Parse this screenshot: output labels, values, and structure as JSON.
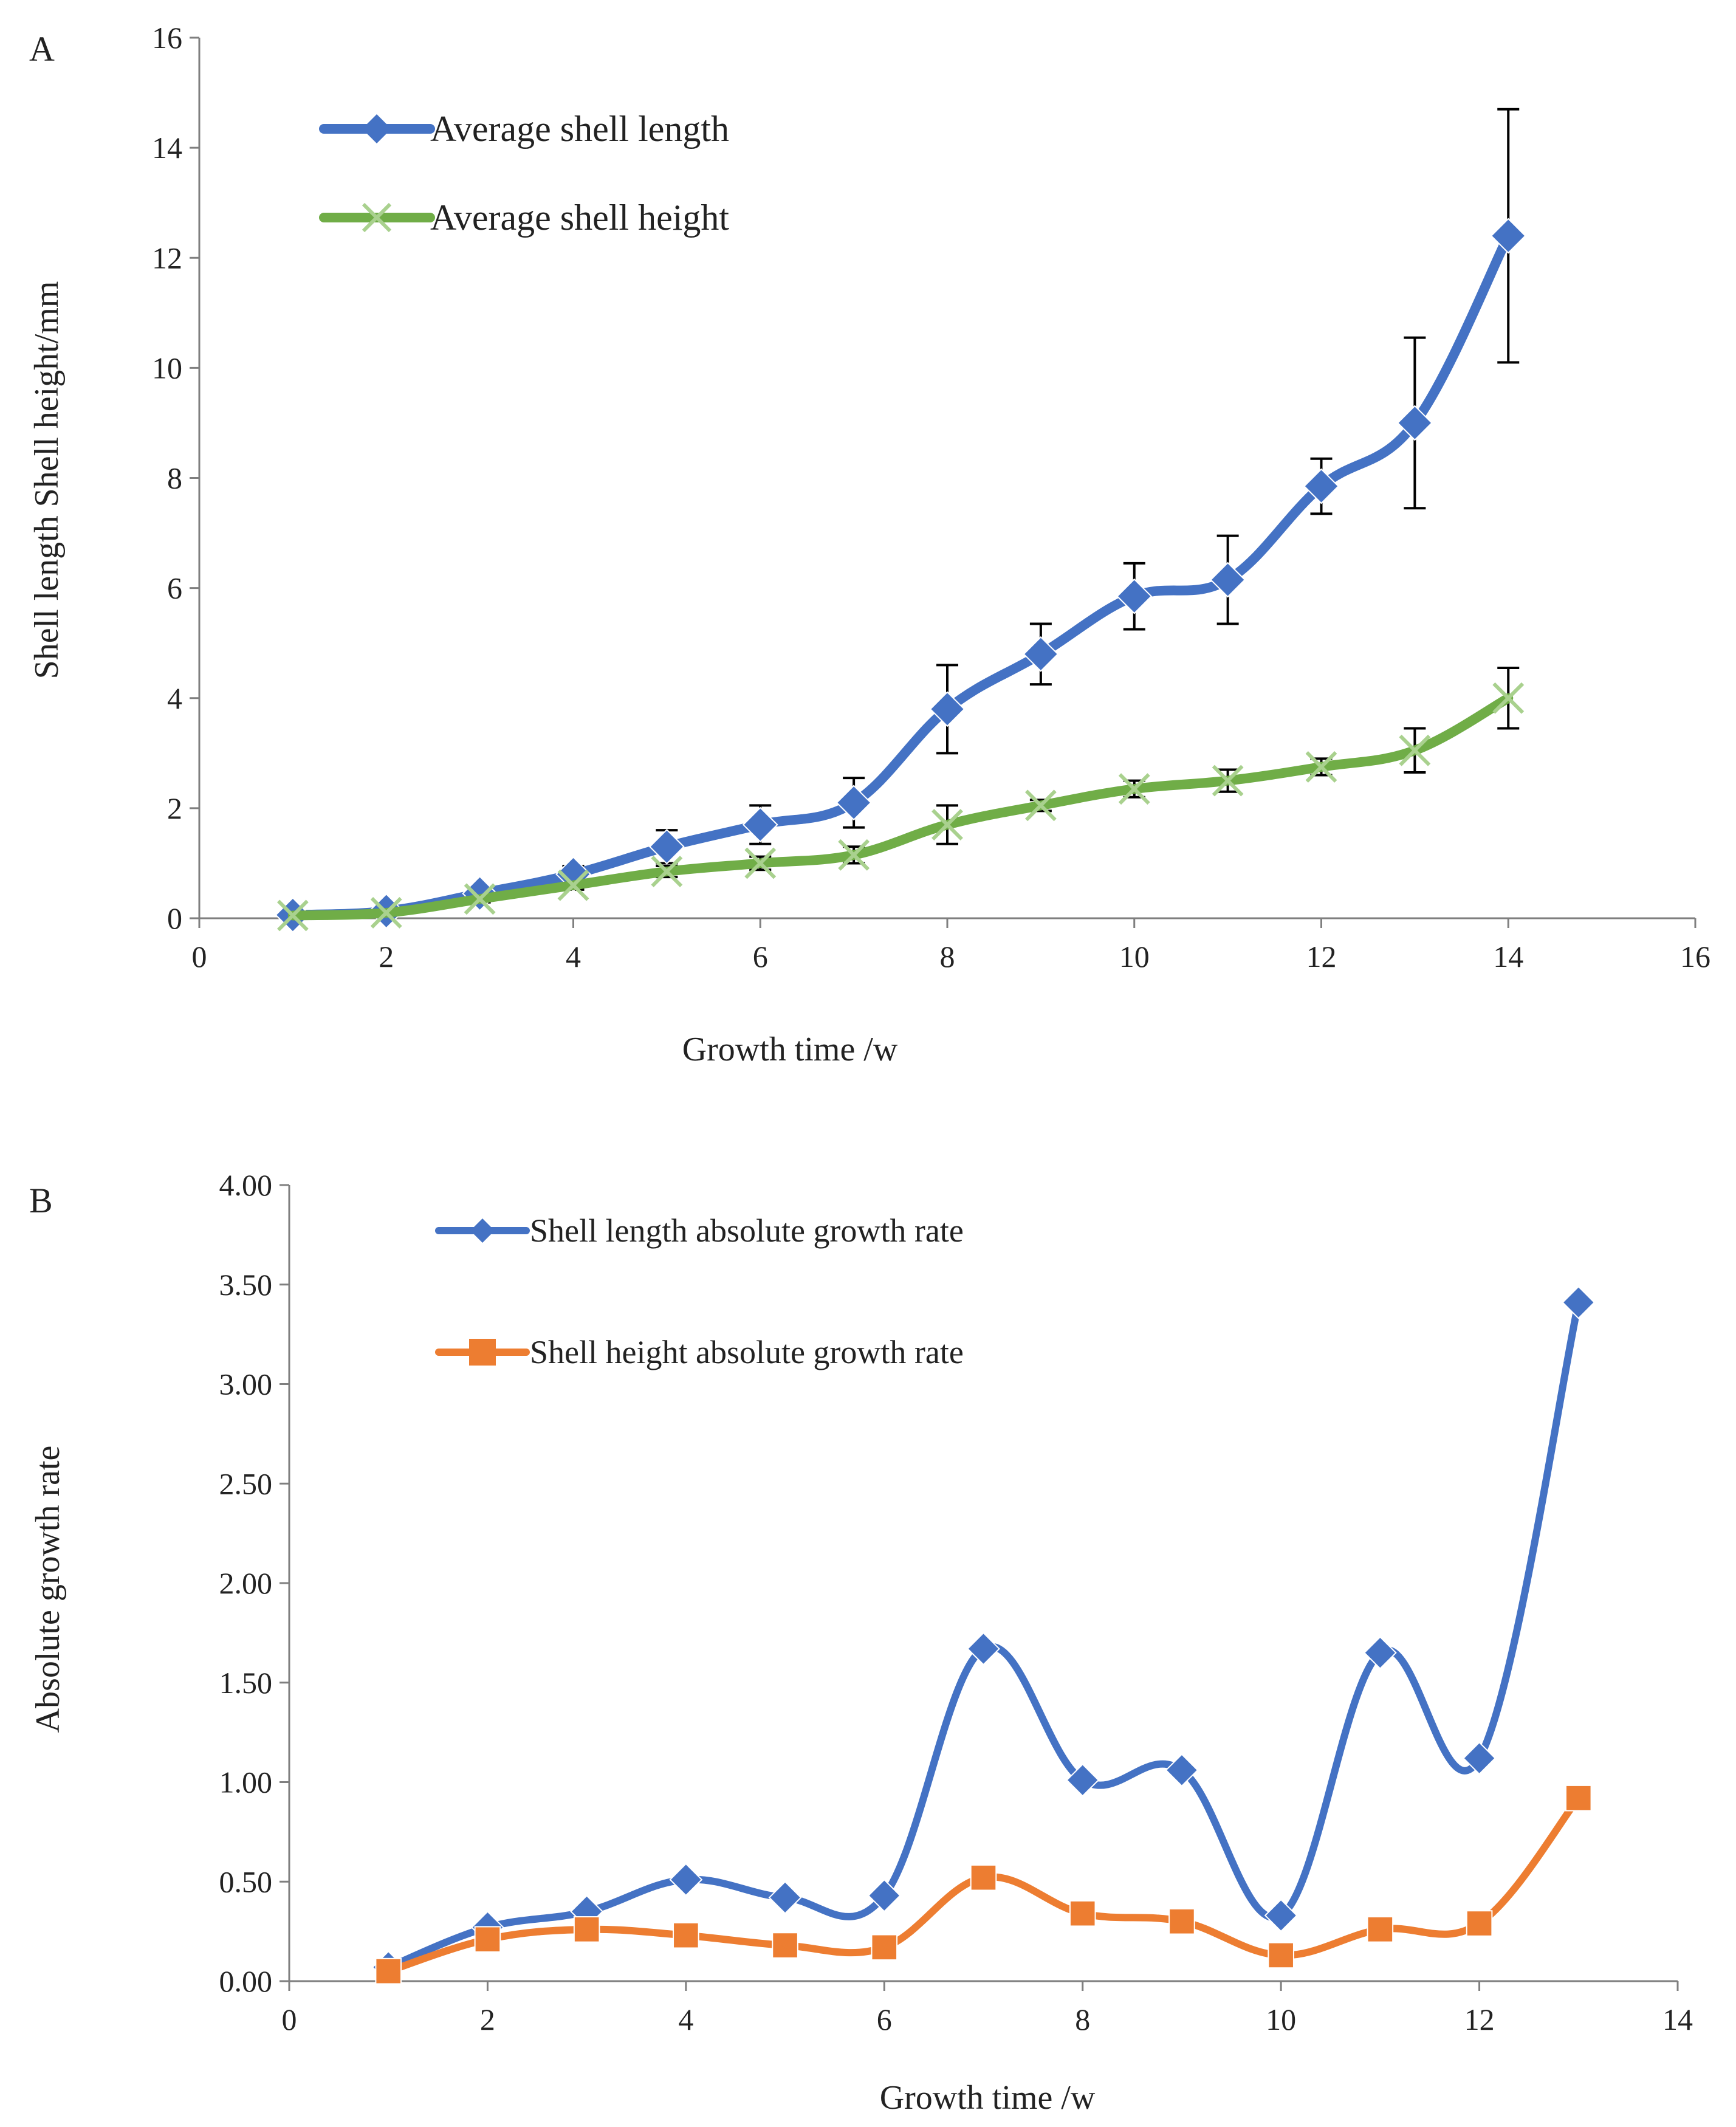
{
  "chart_data": [
    {
      "panel_label": "A",
      "type": "line",
      "xlabel": "Growth time /w",
      "ylabel": "Shell length Shell height/mm",
      "xlim": [
        0,
        16
      ],
      "ylim": [
        0,
        16
      ],
      "x_ticks": [
        "0",
        "2",
        "4",
        "6",
        "8",
        "10",
        "12",
        "14",
        "16"
      ],
      "y_ticks": [
        "0",
        "2",
        "4",
        "6",
        "8",
        "10",
        "12",
        "14",
        "16"
      ],
      "grid": false,
      "legend_position": "top-left",
      "x": [
        1,
        2,
        3,
        4,
        5,
        6,
        7,
        8,
        9,
        10,
        11,
        12,
        13,
        14
      ],
      "series": [
        {
          "name": "Average shell length",
          "color": "#4472C4",
          "marker": "diamond",
          "values": [
            0.06,
            0.13,
            0.45,
            0.8,
            1.3,
            1.7,
            2.1,
            3.8,
            4.8,
            5.85,
            6.15,
            7.85,
            9.0,
            12.4
          ],
          "error": [
            0.03,
            0.05,
            0.1,
            0.15,
            0.3,
            0.35,
            0.45,
            0.8,
            0.55,
            0.6,
            0.8,
            0.5,
            1.55,
            2.3
          ]
        },
        {
          "name": "Average shell height",
          "color": "#70AD47",
          "marker": "x",
          "values": [
            0.05,
            0.1,
            0.35,
            0.6,
            0.85,
            1.0,
            1.15,
            1.7,
            2.05,
            2.35,
            2.5,
            2.75,
            3.05,
            4.0
          ],
          "error": [
            0.02,
            0.04,
            0.06,
            0.08,
            0.1,
            0.12,
            0.15,
            0.35,
            0.1,
            0.15,
            0.2,
            0.15,
            0.4,
            0.55
          ]
        }
      ]
    },
    {
      "panel_label": "B",
      "type": "line",
      "xlabel": "Growth time /w",
      "ylabel": "Absolute growth rate",
      "xlim": [
        0,
        14
      ],
      "ylim": [
        0,
        4
      ],
      "x_ticks": [
        "0",
        "2",
        "4",
        "6",
        "8",
        "10",
        "12",
        "14"
      ],
      "y_ticks": [
        "0.00",
        "0.50",
        "1.00",
        "1.50",
        "2.00",
        "2.50",
        "3.00",
        "3.50",
        "4.00"
      ],
      "grid": false,
      "legend_position": "top-left",
      "x": [
        1,
        2,
        3,
        4,
        5,
        6,
        7,
        8,
        9,
        10,
        11,
        12,
        13
      ],
      "series": [
        {
          "name": "Shell length absolute growth rate",
          "color": "#4472C4",
          "marker": "diamond",
          "values": [
            0.07,
            0.27,
            0.35,
            0.51,
            0.42,
            0.43,
            1.67,
            1.01,
            1.06,
            0.33,
            1.65,
            1.12,
            3.41
          ]
        },
        {
          "name": "Shell height absolute growth rate",
          "color": "#ED7D31",
          "marker": "square",
          "values": [
            0.05,
            0.21,
            0.26,
            0.23,
            0.18,
            0.17,
            0.52,
            0.34,
            0.3,
            0.13,
            0.26,
            0.29,
            0.92
          ]
        }
      ]
    }
  ]
}
